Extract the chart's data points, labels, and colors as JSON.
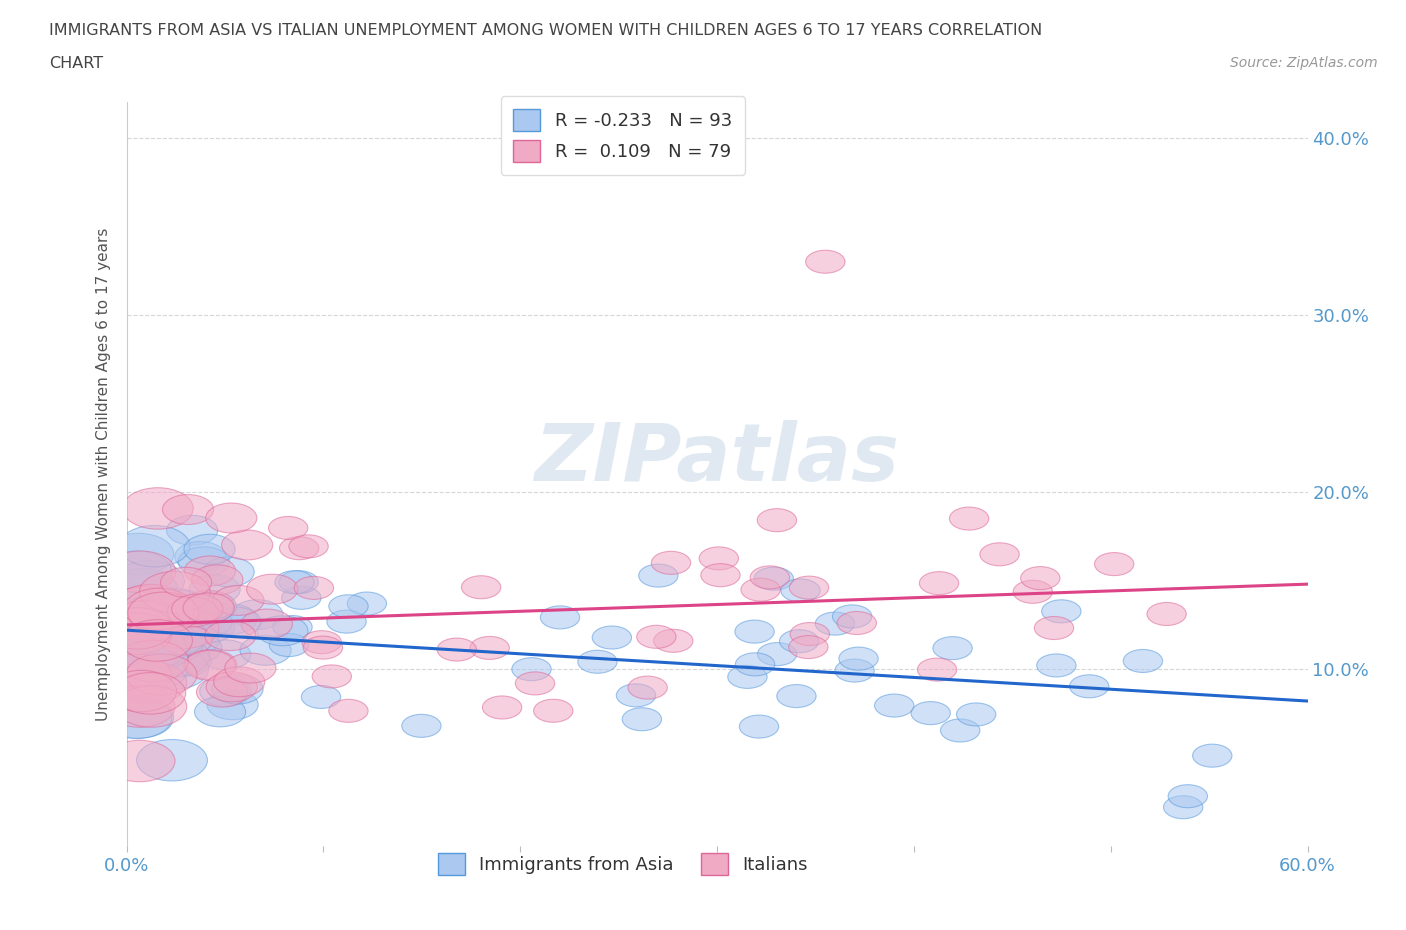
{
  "title_line1": "IMMIGRANTS FROM ASIA VS ITALIAN UNEMPLOYMENT AMONG WOMEN WITH CHILDREN AGES 6 TO 17 YEARS CORRELATION",
  "title_line2": "CHART",
  "source": "Source: ZipAtlas.com",
  "ylabel": "Unemployment Among Women with Children Ages 6 to 17 years",
  "xlim": [
    0.0,
    0.6
  ],
  "ylim": [
    0.0,
    0.42
  ],
  "blue_R": -0.233,
  "blue_N": 93,
  "pink_R": 0.109,
  "pink_N": 79,
  "blue_color": "#aac8f0",
  "pink_color": "#f0aac4",
  "blue_edge_color": "#5599dd",
  "pink_edge_color": "#dd6699",
  "blue_line_color": "#2266cc",
  "pink_line_color": "#dd4488",
  "legend_label_blue": "Immigrants from Asia",
  "legend_label_pink": "Italians",
  "background_color": "#ffffff",
  "grid_color": "#cccccc",
  "title_color": "#444444",
  "axis_label_color": "#555555",
  "tick_label_color": "#5599cc",
  "watermark": "ZIPatlas",
  "blue_line_x0": 0.0,
  "blue_line_y0": 0.122,
  "blue_line_x1": 0.6,
  "blue_line_y1": 0.082,
  "pink_line_x0": 0.0,
  "pink_line_y0": 0.125,
  "pink_line_x1": 0.6,
  "pink_line_y1": 0.148
}
